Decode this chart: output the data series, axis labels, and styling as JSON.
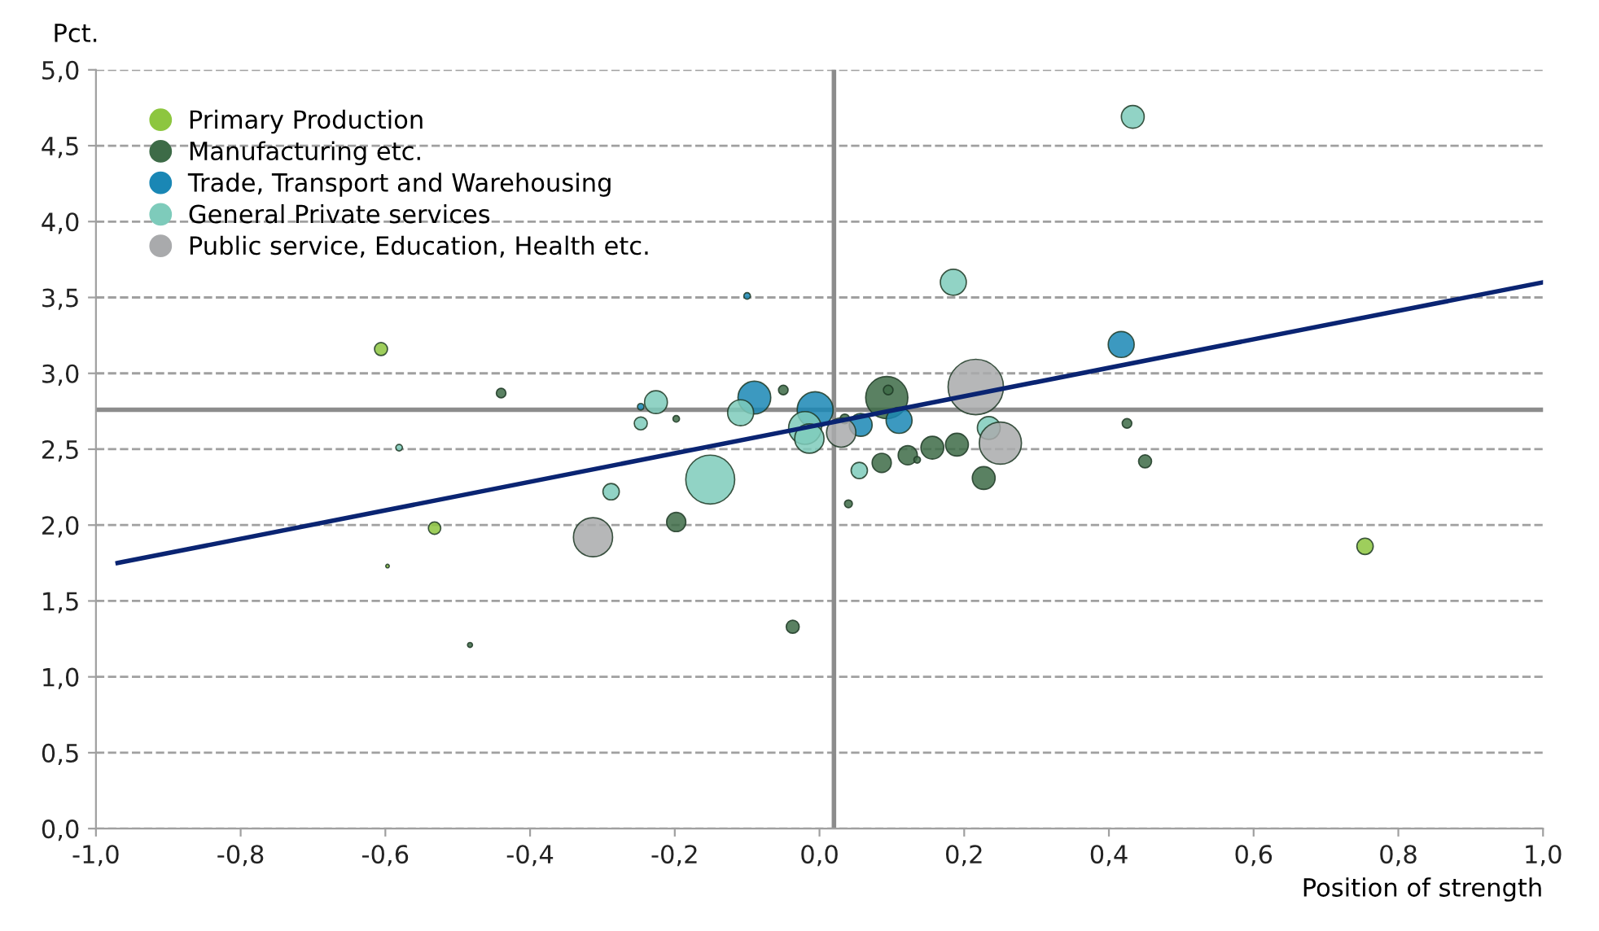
{
  "chart_data": {
    "type": "bubble",
    "ylabel": "Pct.",
    "xlabel": "Position of strength",
    "xlim": [
      -1.0,
      1.0
    ],
    "xticks": [
      {
        "value": -1.0,
        "label": "-1,0"
      },
      {
        "value": -0.8,
        "label": "-0,8"
      },
      {
        "value": -0.6,
        "label": "-0,6"
      },
      {
        "value": -0.4,
        "label": "-0,4"
      },
      {
        "value": -0.2,
        "label": "-0,2"
      },
      {
        "value": 0.0,
        "label": "0,0"
      },
      {
        "value": 0.2,
        "label": "0,2"
      },
      {
        "value": 0.4,
        "label": "0,4"
      },
      {
        "value": 0.6,
        "label": "0,6"
      },
      {
        "value": 0.8,
        "label": "0,8"
      },
      {
        "value": 1.0,
        "label": "1,0"
      }
    ],
    "ylim": [
      0.0,
      5.0
    ],
    "yticks": [
      {
        "value": 0.0,
        "label": "0,0"
      },
      {
        "value": 0.5,
        "label": "0,5"
      },
      {
        "value": 1.0,
        "label": "1,0"
      },
      {
        "value": 1.5,
        "label": "1,5"
      },
      {
        "value": 2.0,
        "label": "2,0"
      },
      {
        "value": 2.5,
        "label": "2,5"
      },
      {
        "value": 3.0,
        "label": "3,0"
      },
      {
        "value": 3.5,
        "label": "3,5"
      },
      {
        "value": 4.0,
        "label": "4,0"
      },
      {
        "value": 4.5,
        "label": "4,5"
      },
      {
        "value": 5.0,
        "label": "5,0"
      }
    ],
    "grid": "y",
    "legend": "top left",
    "marker": "circle",
    "ref_lines": [
      {
        "axis": "x",
        "value": 0.02,
        "color": "#8c8c8c"
      },
      {
        "axis": "y",
        "value": 2.76,
        "color": "#8c8c8c"
      }
    ],
    "series": [
      {
        "name": "Primary Production",
        "color": "#8dc63f",
        "x": [
          -0.606,
          -0.532,
          -0.597,
          0.754
        ],
        "values": [
          3.16,
          1.98,
          1.73,
          1.86
        ],
        "sizes": [
          0.055,
          0.05,
          0.004,
          0.087
        ]
      },
      {
        "name": "Manufacturing etc.",
        "color": "#3d6b47",
        "x": [
          -0.44,
          -0.198,
          -0.198,
          -0.483,
          -0.037,
          -0.05,
          0.093,
          0.095,
          0.035,
          0.04,
          0.086,
          0.122,
          0.135,
          0.156,
          0.19,
          0.227,
          0.425,
          0.45
        ],
        "values": [
          2.87,
          2.7,
          2.02,
          1.21,
          1.33,
          2.89,
          2.84,
          2.89,
          2.7,
          2.14,
          2.41,
          2.46,
          2.43,
          2.51,
          2.53,
          2.31,
          2.67,
          2.42
        ],
        "sizes": [
          0.03,
          0.014,
          0.12,
          0.008,
          0.055,
          0.03,
          0.58,
          0.03,
          0.03,
          0.02,
          0.12,
          0.12,
          0.014,
          0.17,
          0.17,
          0.17,
          0.03,
          0.055
        ]
      },
      {
        "name": "Trade, Transport and Warehousing",
        "color": "#1a87b5",
        "x": [
          -0.1,
          -0.09,
          -0.247,
          -0.006,
          0.057,
          0.11,
          0.417
        ],
        "values": [
          3.51,
          2.84,
          2.78,
          2.76,
          2.66,
          2.69,
          3.19
        ],
        "sizes": [
          0.014,
          0.35,
          0.014,
          0.42,
          0.17,
          0.22,
          0.22
        ]
      },
      {
        "name": "General Private services",
        "color": "#7ecbbb",
        "x": [
          0.433,
          0.185,
          -0.581,
          -0.247,
          -0.226,
          -0.288,
          -0.151,
          -0.109,
          -0.02,
          -0.014,
          0.234,
          0.055
        ],
        "values": [
          4.69,
          3.6,
          2.51,
          2.67,
          2.81,
          2.22,
          2.3,
          2.74,
          2.64,
          2.57,
          2.64,
          2.36
        ],
        "sizes": [
          0.17,
          0.22,
          0.014,
          0.055,
          0.17,
          0.087,
          0.78,
          0.22,
          0.35,
          0.28,
          0.17,
          0.087
        ]
      },
      {
        "name": "Public service, Education, Health etc.",
        "color": "#a9aaac",
        "x": [
          -0.313,
          0.216,
          0.25,
          0.03
        ],
        "values": [
          1.92,
          2.91,
          2.54,
          2.61
        ],
        "sizes": [
          0.5,
          1.0,
          0.58,
          0.28
        ]
      },
      {
        "type": "line",
        "marker": "none",
        "color": "#0a2472",
        "x": [
          -0.97,
          1.0
        ],
        "values": [
          1.75,
          3.6
        ]
      }
    ]
  }
}
